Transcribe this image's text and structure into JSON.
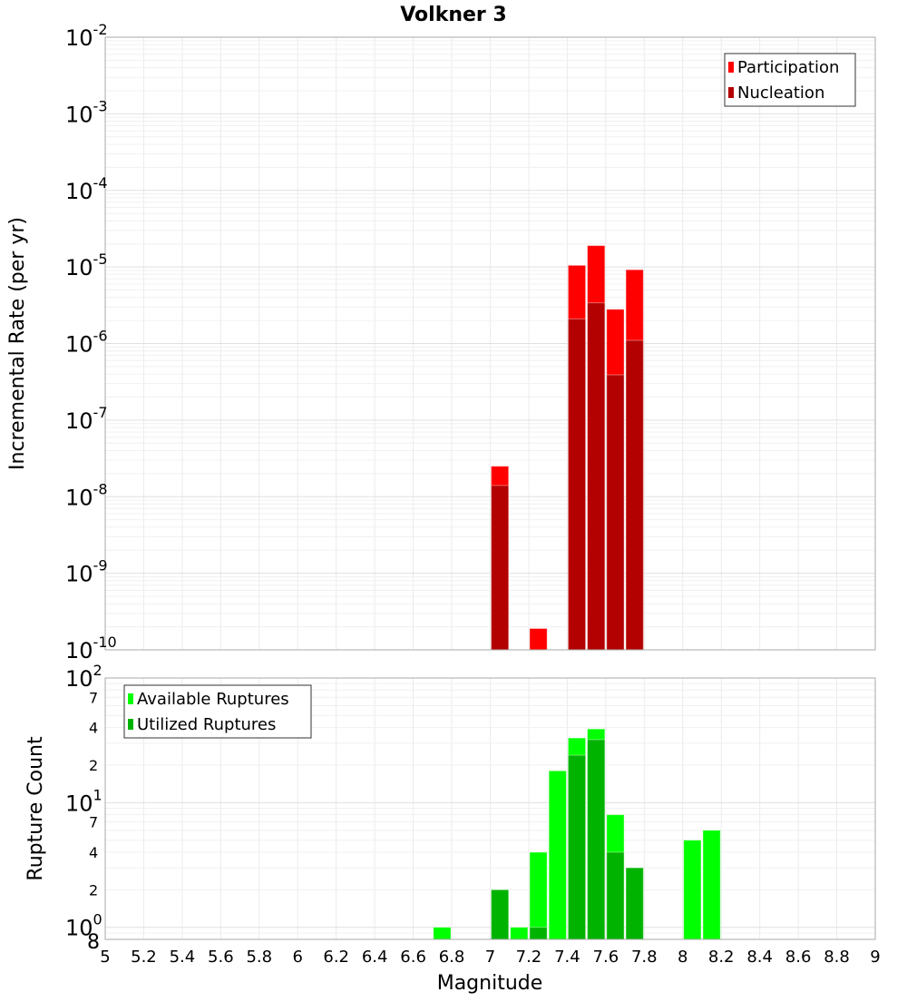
{
  "chart_data": [
    {
      "type": "bar",
      "title": "Volkner 3",
      "ylabel": "Incremental Rate (per yr)",
      "xlabel": "",
      "yscale": "log",
      "ylim": [
        1e-10,
        0.01
      ],
      "xlim": [
        5,
        9
      ],
      "bin_width": 0.1,
      "grid": true,
      "legend_position": "top-right",
      "y_ticks": [
        {
          "base": "10",
          "exp": "-2"
        },
        {
          "base": "10",
          "exp": "-3"
        },
        {
          "base": "10",
          "exp": "-4"
        },
        {
          "base": "10",
          "exp": "-5"
        },
        {
          "base": "10",
          "exp": "-6"
        },
        {
          "base": "10",
          "exp": "-7"
        },
        {
          "base": "10",
          "exp": "-8"
        },
        {
          "base": "10",
          "exp": "-9"
        },
        {
          "base": "10",
          "exp": "-10"
        }
      ],
      "series": [
        {
          "name": "Participation",
          "color": "#ff0000",
          "x": [
            7.05,
            7.25,
            7.45,
            7.55,
            7.65,
            7.75
          ],
          "values": [
            2.5e-08,
            1.9e-10,
            1.05e-05,
            1.9e-05,
            2.8e-06,
            9.2e-06
          ]
        },
        {
          "name": "Nucleation",
          "color": "#b30000",
          "x": [
            7.05,
            7.45,
            7.55,
            7.65,
            7.75
          ],
          "values": [
            1.4e-08,
            2.1e-06,
            3.4e-06,
            3.9e-07,
            1.1e-06
          ]
        }
      ]
    },
    {
      "type": "bar",
      "ylabel": "Rupture Count",
      "xlabel": "Magnitude",
      "yscale": "log",
      "ylim": [
        0.8,
        100
      ],
      "xlim": [
        5,
        9
      ],
      "bin_width": 0.1,
      "grid": true,
      "legend_position": "top-left",
      "y_ticks": [
        {
          "base": "10",
          "exp": "2"
        },
        {
          "base": "10",
          "exp": "1"
        },
        {
          "base": "10",
          "exp": "0"
        }
      ],
      "y_minor_ticks": [
        "7",
        "4",
        "2",
        "7",
        "4",
        "2",
        "8"
      ],
      "x_ticks": [
        "5",
        "5.2",
        "5.4",
        "5.6",
        "5.8",
        "6",
        "6.2",
        "6.4",
        "6.6",
        "6.8",
        "7",
        "7.2",
        "7.4",
        "7.6",
        "7.8",
        "8",
        "8.2",
        "8.4",
        "8.6",
        "8.8",
        "9"
      ],
      "series": [
        {
          "name": "Available Ruptures",
          "color": "#00ff00",
          "x": [
            6.75,
            7.05,
            7.15,
            7.25,
            7.35,
            7.45,
            7.55,
            7.65,
            7.75,
            8.05,
            8.15
          ],
          "values": [
            1,
            2,
            1,
            4,
            18,
            33,
            39,
            8,
            3,
            5,
            6
          ]
        },
        {
          "name": "Utilized Ruptures",
          "color": "#00b300",
          "x": [
            7.05,
            7.25,
            7.45,
            7.55,
            7.65,
            7.75
          ],
          "values": [
            2,
            1,
            24,
            32,
            4,
            3
          ]
        }
      ]
    }
  ]
}
